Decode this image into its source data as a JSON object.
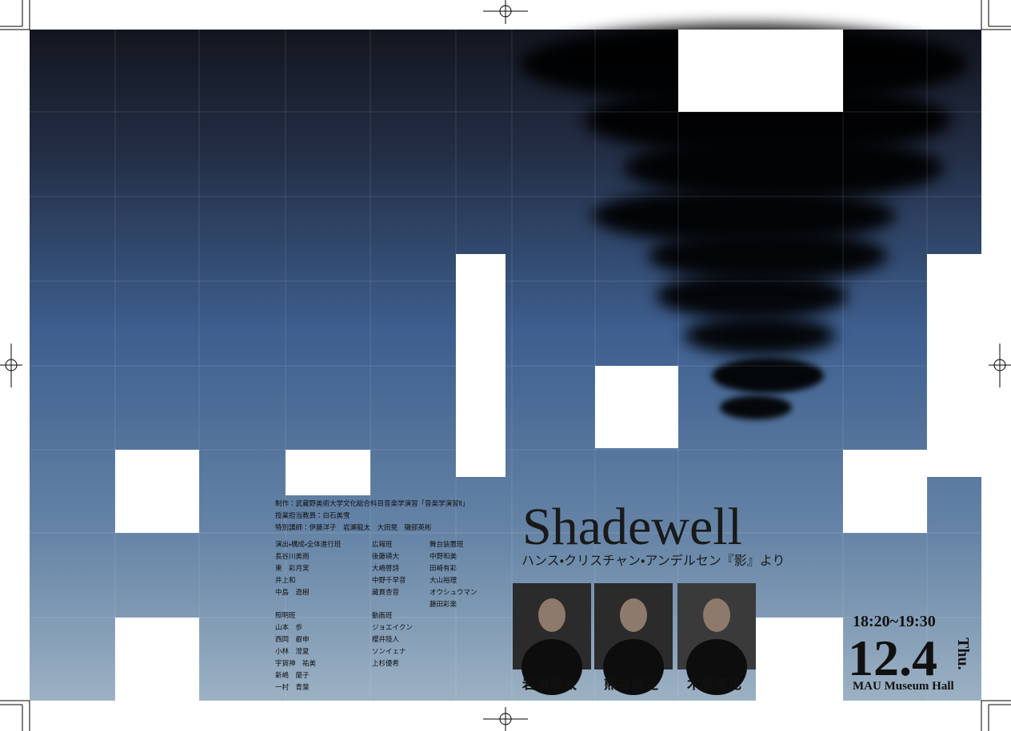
{
  "credits": {
    "lines": [
      "制作：武蔵野美術大学文化総合科目音楽学演習「音楽学演習Ⅱ」",
      "授業担当教員：白石美雪",
      "特別講師：伊藤洋子　岩瀬龍太　大田晃　磯部英彬"
    ]
  },
  "staff": {
    "groups": [
      {
        "team": "演出・構成・全体進行班",
        "members": [
          "長谷川美雨",
          "東　彩月実",
          "井上和",
          "中島　逸樹"
        ]
      },
      {
        "team": "広報班",
        "members": [
          "後藤瑛大",
          "大嶋啓詩",
          "中野千早音",
          "藏貫杏音"
        ]
      },
      {
        "team": "舞台装置班",
        "members": [
          "中野和美",
          "田崎有彩",
          "大山裕理",
          "オウシュウマン",
          "藤田彩楽"
        ]
      },
      {
        "team": "照明班",
        "members": [
          "山本　歩",
          "西岡　叡申",
          "小林　澄夏",
          "宇賀神　祐美",
          "新嶋　蘭子",
          "一村　青葉"
        ]
      },
      {
        "team": "動画班",
        "members": [
          "ジョエイクン",
          "櫻井陸人",
          "ソンイェナ",
          "上杉優希"
        ]
      }
    ]
  },
  "title": "Shadewell",
  "subtitle": "ハンス・クリスチャン・アンデルセン『影』より",
  "performers": [
    "岩瀬龍太",
    "熊谷俊之",
    "木原萌花"
  ],
  "event": {
    "time": "18:20~19:30",
    "date": "12.4",
    "weekday": "Thu.",
    "venue": "MAU Museum Hall"
  }
}
